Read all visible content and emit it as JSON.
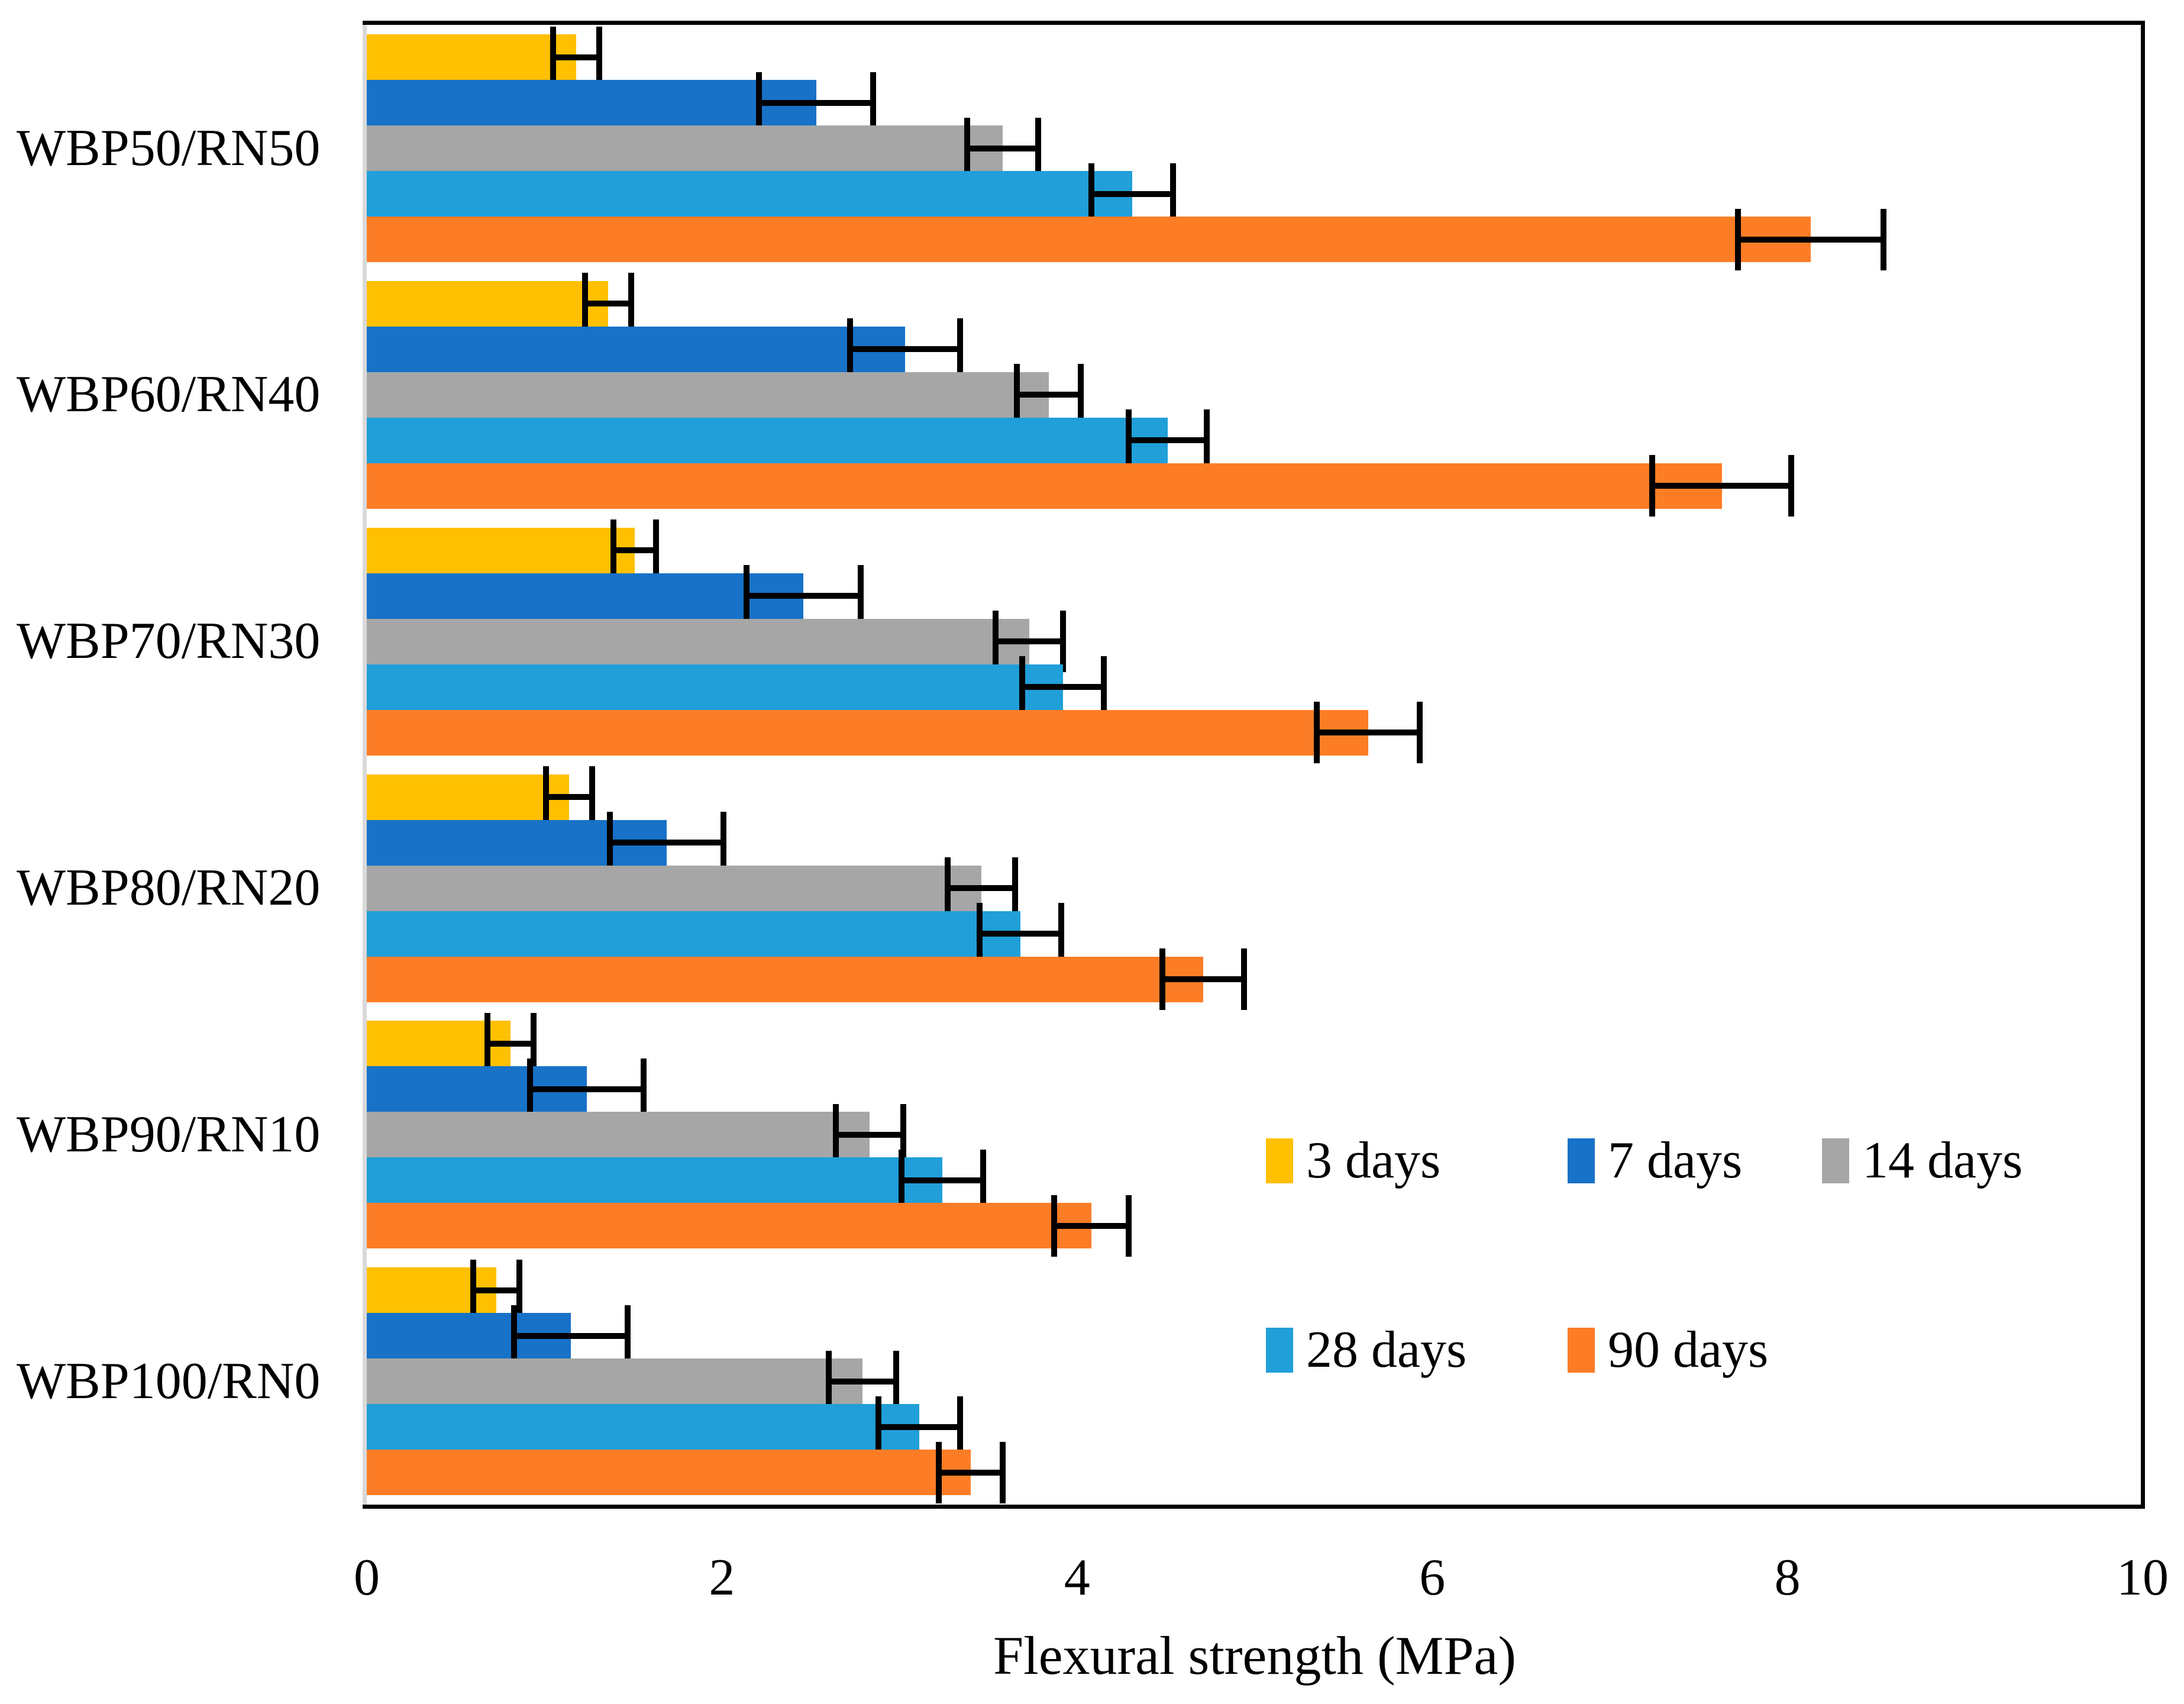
{
  "chart_data": {
    "type": "bar",
    "orientation": "horizontal",
    "title": "",
    "xlabel": "Flexural strength (MPa)",
    "xlim": [
      0,
      10
    ],
    "xticks": [
      0,
      2,
      4,
      6,
      8,
      10
    ],
    "grid": false,
    "legend_position": "inside-right-two-rows",
    "axis_color": "#000000",
    "left_axis_line_color": "#D9D9D9",
    "error_bar_color": "#000000",
    "categories": [
      "WBP50/RN50",
      "WBP60/RN40",
      "WBP70/RN30",
      "WBP80/RN20",
      "WBP90/RN10",
      "WBP100/RN0"
    ],
    "series": [
      {
        "name": "3 days",
        "color": "#FFC000",
        "values": [
          1.18,
          1.36,
          1.51,
          1.14,
          0.81,
          0.73
        ],
        "errors": [
          0.13,
          0.13,
          0.12,
          0.13,
          0.13,
          0.13
        ]
      },
      {
        "name": "7 days",
        "color": "#1772C8",
        "values": [
          2.53,
          3.03,
          2.46,
          1.69,
          1.24,
          1.15
        ],
        "errors": [
          0.32,
          0.31,
          0.32,
          0.32,
          0.32,
          0.32
        ]
      },
      {
        "name": "14 days",
        "color": "#A6A6A6",
        "values": [
          3.58,
          3.84,
          3.73,
          3.46,
          2.83,
          2.79
        ],
        "errors": [
          0.2,
          0.18,
          0.19,
          0.19,
          0.19,
          0.19
        ]
      },
      {
        "name": "28 days",
        "color": "#209FD9",
        "values": [
          4.31,
          4.51,
          3.92,
          3.68,
          3.24,
          3.11
        ],
        "errors": [
          0.23,
          0.22,
          0.23,
          0.23,
          0.23,
          0.23
        ]
      },
      {
        "name": "90 days",
        "color": "#FD7D26",
        "values": [
          8.13,
          7.63,
          5.64,
          4.71,
          4.08,
          3.4
        ],
        "errors": [
          0.41,
          0.39,
          0.29,
          0.23,
          0.21,
          0.18
        ]
      }
    ]
  }
}
